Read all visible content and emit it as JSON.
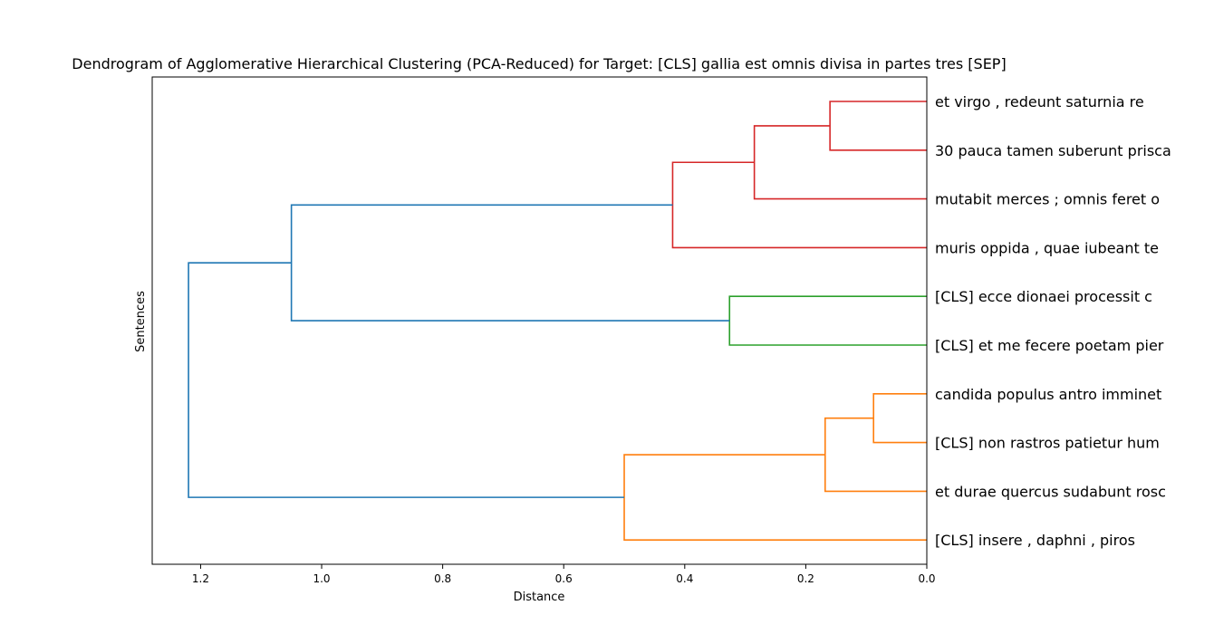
{
  "chart_data": {
    "type": "dendrogram",
    "title": "Dendrogram of Agglomerative Hierarchical Clustering (PCA-Reduced) for Target: [CLS] gallia est omnis divisa in partes tres [SEP]",
    "xlabel": "Distance",
    "ylabel": "Sentences",
    "xlim": [
      1.28,
      0.0
    ],
    "xticks": [
      {
        "value": 1.2,
        "label": "1.2"
      },
      {
        "value": 1.0,
        "label": "1.0"
      },
      {
        "value": 0.8,
        "label": "0.8"
      },
      {
        "value": 0.6,
        "label": "0.6"
      },
      {
        "value": 0.4,
        "label": "0.4"
      },
      {
        "value": 0.2,
        "label": "0.2"
      },
      {
        "value": 0.0,
        "label": "0.0"
      }
    ],
    "leaves": [
      "et virgo , redeunt saturnia re",
      "30 pauca tamen suberunt prisca",
      "mutabit merces ; omnis feret o",
      "muris oppida , quae iubeant te",
      "[CLS] ecce dionaei processit c",
      "[CLS] et me fecere poetam pier",
      "candida populus antro imminet",
      "[CLS] non rastros patietur hum",
      "et durae quercus sudabunt rosc",
      "[CLS] insere , daphni , piros"
    ],
    "colors": {
      "red": "#d62728",
      "green": "#2ca02c",
      "orange": "#ff7f0e",
      "blue": "#1f77b4"
    },
    "merges": [
      {
        "id": "n1",
        "left": "L0",
        "right": "L1",
        "distance": 0.16,
        "color": "red"
      },
      {
        "id": "n2",
        "left": "n1",
        "right": "L2",
        "distance": 0.285,
        "color": "red"
      },
      {
        "id": "n3",
        "left": "n2",
        "right": "L3",
        "distance": 0.42,
        "color": "red"
      },
      {
        "id": "n4",
        "left": "L4",
        "right": "L5",
        "distance": 0.326,
        "color": "green"
      },
      {
        "id": "n5",
        "left": "n3",
        "right": "n4",
        "distance": 1.05,
        "color": "blue"
      },
      {
        "id": "n6",
        "left": "L6",
        "right": "L7",
        "distance": 0.088,
        "color": "orange"
      },
      {
        "id": "n7",
        "left": "n6",
        "right": "L8",
        "distance": 0.168,
        "color": "orange"
      },
      {
        "id": "n8",
        "left": "n7",
        "right": "L9",
        "distance": 0.5,
        "color": "orange"
      },
      {
        "id": "n9",
        "left": "n5",
        "right": "n8",
        "distance": 1.22,
        "color": "blue"
      }
    ]
  }
}
